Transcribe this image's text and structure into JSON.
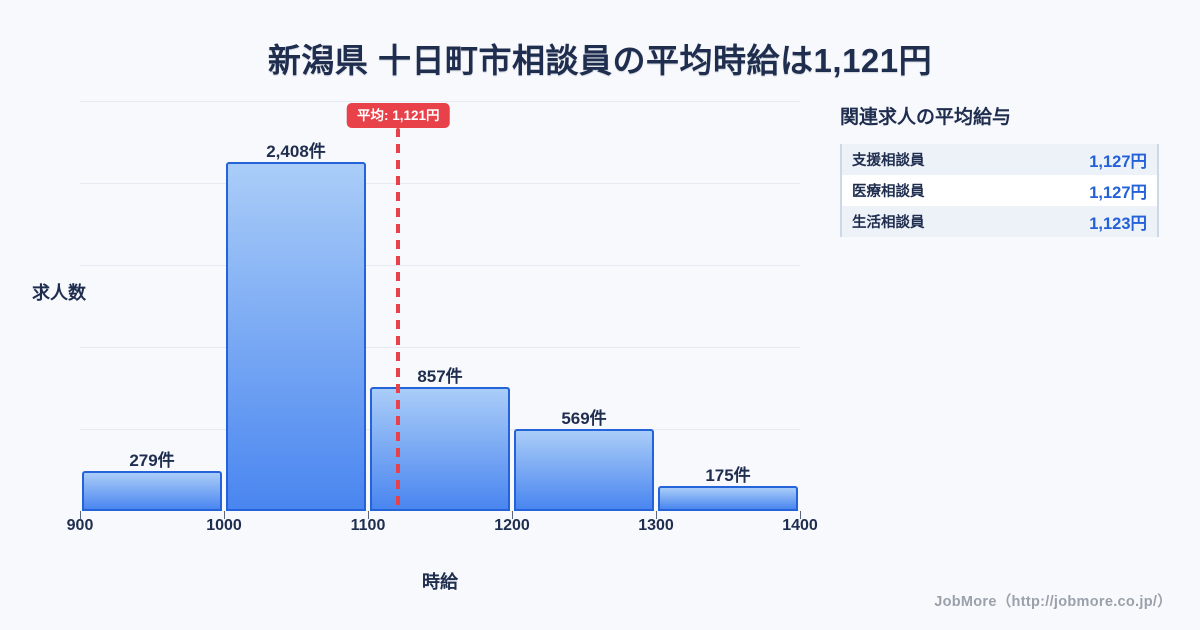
{
  "title": "新潟県 十日町市相談員の平均時給は1,121円",
  "chart_data": {
    "type": "bar",
    "subtype": "histogram",
    "title": "新潟県 十日町市相談員の平均時給は1,121円",
    "xlabel": "時給",
    "ylabel": "求人数",
    "bin_edges": [
      900,
      1000,
      1100,
      1200,
      1300,
      1400
    ],
    "x_tick_labels": [
      "900",
      "1000",
      "1100",
      "1200",
      "1300",
      "1400"
    ],
    "values": [
      279,
      2408,
      857,
      569,
      175
    ],
    "bar_labels": [
      "279件",
      "2,408件",
      "857件",
      "569件",
      "175件"
    ],
    "unit": "件",
    "x_range": [
      900,
      1400
    ],
    "grid": "horizontal",
    "average_line": {
      "value": 1121,
      "label": "平均: 1,121円"
    }
  },
  "side_panel": {
    "title": "関連求人の平均給与",
    "rows": [
      {
        "label": "支援相談員",
        "value": "1,127円"
      },
      {
        "label": "医療相談員",
        "value": "1,127円"
      },
      {
        "label": "生活相談員",
        "value": "1,123円"
      }
    ]
  },
  "footer": {
    "credit": "JobMore（http://jobmore.co.jp/）"
  },
  "colors": {
    "background": "#f7f9fc",
    "navy": "#1f2d4e",
    "bar_gradient_top": "#aacdf8",
    "bar_gradient_bottom": "#4a86f0",
    "bar_border": "#2564d8",
    "grid": "#e5eaf2",
    "average_red": "#e8414a",
    "value_blue": "#2361d8",
    "footer_gray": "#9aa1ab",
    "row_stripe": "#edf1f8",
    "table_border": "#ccd7e8"
  }
}
